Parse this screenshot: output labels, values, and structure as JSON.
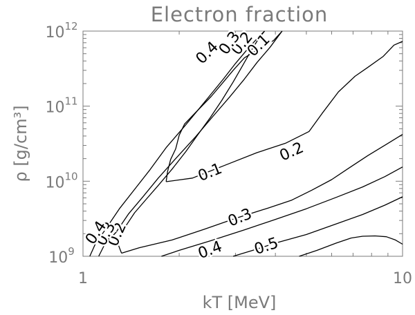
{
  "chart_data": {
    "type": "contour",
    "title": "Electron fraction",
    "xlabel": "kT [MeV]",
    "ylabel": "ρ [g/cm³]",
    "xscale": "log",
    "yscale": "log",
    "xlim": [
      1,
      10
    ],
    "ylim": [
      1000000000.0,
      1000000000000.0
    ],
    "x_ticks": [
      {
        "value": 1,
        "label": "1"
      },
      {
        "value": 10,
        "label": "10"
      }
    ],
    "y_ticks": [
      {
        "value": 1000000000.0,
        "base": "10",
        "exp": "9"
      },
      {
        "value": 10000000000.0,
        "base": "10",
        "exp": "10"
      },
      {
        "value": 100000000000.0,
        "base": "10",
        "exp": "11"
      },
      {
        "value": 1000000000000.0,
        "base": "10",
        "exp": "12"
      }
    ],
    "series": [
      {
        "level": "0.1",
        "lines": [
          [
            [
              1.82,
              9850000000.0
            ],
            [
              2.2,
              11000000000.0
            ],
            [
              2.8,
              16500000000.0
            ],
            [
              3.5,
              24000000000.0
            ],
            [
              4.3,
              32000000000.0
            ],
            [
              5.1,
              46000000000.0
            ],
            [
              5.6,
              80000000000.0
            ],
            [
              6.3,
              155000000000.0
            ],
            [
              7.1,
              250000000000.0
            ],
            [
              7.8,
              330000000000.0
            ],
            [
              8.7,
              460000000000.0
            ],
            [
              9.4,
              650000000000.0
            ],
            [
              10,
              730000000000.0
            ]
          ]
        ],
        "labels": [
          {
            "x": 2.5,
            "y": 13000000000.0,
            "angle": -22
          }
        ]
      },
      {
        "level": "0.1",
        "lines": [
          [
            [
              1.82,
              9850000000.0
            ],
            [
              1.84,
              13500000000.0
            ],
            [
              1.88,
              19500000000.0
            ],
            [
              1.95,
              27000000000.0
            ],
            [
              2.0,
              41000000000.0
            ],
            [
              2.08,
              58000000000.0
            ],
            [
              2.25,
              82000000000.0
            ],
            [
              2.52,
              135000000000.0
            ],
            [
              2.75,
              210000000000.0
            ],
            [
              2.95,
              300000000000.0
            ],
            [
              3.2,
              440000000000.0
            ],
            [
              3.6,
              600000000000.0
            ],
            [
              3.95,
              750000000000.0
            ],
            [
              4.2,
              1000000000000.0
            ]
          ]
        ],
        "labels": [
          {
            "x": 3.55,
            "y": 640000000000.0,
            "angle": -44
          }
        ]
      },
      {
        "level": "0.2",
        "lines": [
          [
            [
              1.32,
              1100000000.0
            ],
            [
              1.28,
              1550000000.0
            ],
            [
              1.35,
              2400000000.0
            ],
            [
              1.45,
              3800000000.0
            ],
            [
              1.58,
              5800000000.0
            ],
            [
              1.72,
              8800000000.0
            ],
            [
              1.9,
              14500000000.0
            ],
            [
              2.1,
              25000000000.0
            ],
            [
              2.3,
              43000000000.0
            ],
            [
              2.5,
              70000000000.0
            ],
            [
              2.72,
              120000000000.0
            ],
            [
              2.95,
              210000000000.0
            ],
            [
              3.15,
              340000000000.0
            ],
            [
              3.35,
              540000000000.0
            ],
            [
              3.55,
              800000000000.0
            ],
            [
              3.7,
              1000000000000.0
            ]
          ]
        ],
        "labels": [
          {
            "x": 1.28,
            "y": 1950000000.0,
            "angle": -66
          },
          {
            "x": 3.15,
            "y": 680000000000.0,
            "angle": -52
          }
        ]
      },
      {
        "level": "0.2",
        "lines": [
          [
            [
              1.32,
              1100000000.0
            ],
            [
              1.5,
              1300000000.0
            ],
            [
              1.9,
              1650000000.0
            ],
            [
              2.4,
              2300000000.0
            ],
            [
              3.0,
              3200000000.0
            ],
            [
              3.8,
              4400000000.0
            ],
            [
              4.5,
              5600000000.0
            ],
            [
              5.2,
              7600000000.0
            ],
            [
              6.0,
              10500000000.0
            ],
            [
              6.8,
              15000000000.0
            ],
            [
              7.8,
              22000000000.0
            ],
            [
              8.9,
              31000000000.0
            ],
            [
              10,
              42000000000.0
            ]
          ]
        ],
        "labels": [
          {
            "x": 4.5,
            "y": 24500000000.0,
            "angle": -24
          }
        ]
      },
      {
        "level": "0.3",
        "lines": [
          [
            [
              1.12,
              1000000000.0
            ],
            [
              1.17,
              1450000000.0
            ],
            [
              1.27,
              2100000000.0
            ],
            [
              1.39,
              3700000000.0
            ],
            [
              1.54,
              6200000000.0
            ],
            [
              1.72,
              11000000000.0
            ],
            [
              1.95,
              20000000000.0
            ],
            [
              2.25,
              39000000000.0
            ],
            [
              2.55,
              73000000000.0
            ],
            [
              2.88,
              133000000000.0
            ],
            [
              3.2,
              230000000000.0
            ],
            [
              3.5,
              380000000000.0
            ],
            [
              3.85,
              610000000000.0
            ],
            [
              4.2,
              1000000000000.0
            ]
          ]
        ],
        "labels": [
          {
            "x": 1.18,
            "y": 1980000000.0,
            "angle": -62
          },
          {
            "x": 2.88,
            "y": 690000000000.0,
            "angle": -54
          }
        ]
      },
      {
        "level": "0.3",
        "lines": [
          [
            [
              1.76,
              1000000000.0
            ],
            [
              2.0,
              1200000000.0
            ],
            [
              2.5,
              1600000000.0
            ],
            [
              3.2,
              2250000000.0
            ],
            [
              4.0,
              3100000000.0
            ],
            [
              5.0,
              4300000000.0
            ],
            [
              6.2,
              6100000000.0
            ],
            [
              7.5,
              8400000000.0
            ],
            [
              8.8,
              11500000000.0
            ],
            [
              10,
              15500000000.0
            ]
          ]
        ],
        "labels": [
          {
            "x": 3.1,
            "y": 3250000000.0,
            "angle": -22
          }
        ]
      },
      {
        "level": "0.4",
        "lines": [
          [
            [
              1.05,
              1000000000.0
            ],
            [
              1.1,
              1550000000.0
            ],
            [
              1.16,
              2100000000.0
            ],
            [
              1.3,
              4300000000.0
            ],
            [
              1.45,
              7800000000.0
            ],
            [
              1.62,
              14200000000.0
            ],
            [
              1.82,
              28000000000.0
            ],
            [
              2.08,
              54000000000.0
            ],
            [
              2.32,
              95000000000.0
            ],
            [
              2.55,
              155000000000.0
            ],
            [
              2.75,
              230000000000.0
            ],
            [
              3.0,
              370000000000.0
            ],
            [
              3.3,
              600000000000.0
            ],
            [
              3.55,
              840000000000.0
            ],
            [
              3.7,
              1000000000000.0
            ]
          ]
        ],
        "labels": [
          {
            "x": 1.1,
            "y": 2050000000.0,
            "angle": -56
          },
          {
            "x": 2.45,
            "y": 510000000000.0,
            "angle": -45
          }
        ]
      },
      {
        "level": "0.4",
        "lines": [
          [
            [
              2.95,
              1000000000.0
            ],
            [
              3.4,
              1200000000.0
            ],
            [
              4.0,
              1500000000.0
            ],
            [
              5.0,
              1950000000.0
            ],
            [
              6.2,
              2700000000.0
            ],
            [
              7.5,
              3600000000.0
            ],
            [
              8.8,
              4800000000.0
            ],
            [
              10,
              6200000000.0
            ]
          ]
        ],
        "labels": [
          {
            "x": 2.5,
            "y": 1200000000.0,
            "angle": -20
          }
        ]
      },
      {
        "level": "0.5",
        "lines": [
          [
            [
              4.75,
              1000000000.0
            ],
            [
              5.4,
              1200000000.0
            ],
            [
              6.2,
              1500000000.0
            ],
            [
              6.9,
              1750000000.0
            ],
            [
              7.5,
              1850000000.0
            ],
            [
              8.2,
              1870000000.0
            ],
            [
              8.9,
              1820000000.0
            ],
            [
              9.5,
              1650000000.0
            ],
            [
              10,
              1450000000.0
            ]
          ]
        ],
        "labels": [
          {
            "x": 3.75,
            "y": 1350000000.0,
            "angle": -18
          }
        ]
      }
    ]
  }
}
